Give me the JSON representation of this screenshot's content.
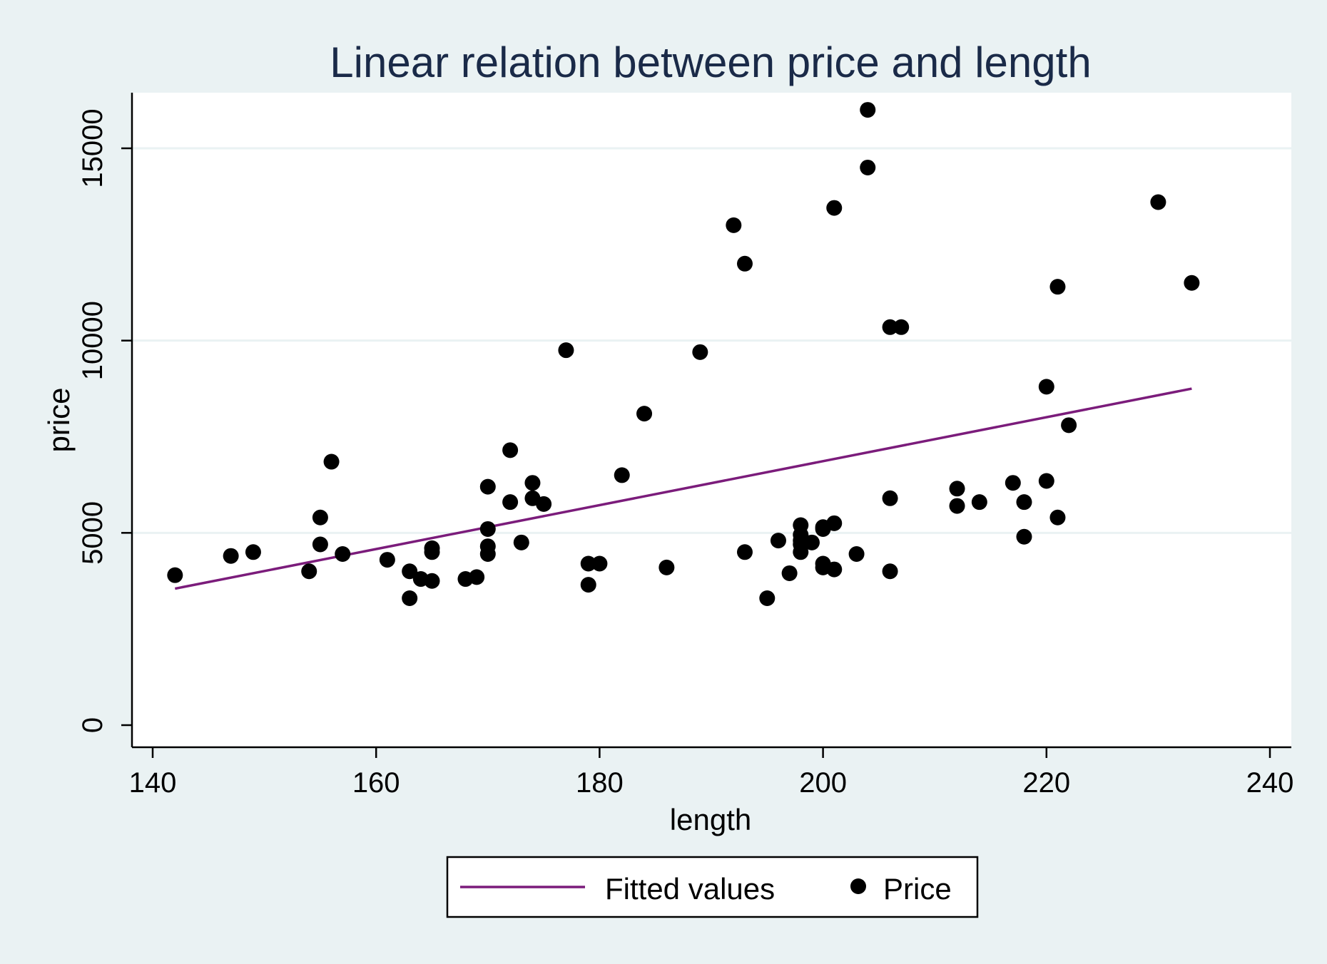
{
  "chart_data": {
    "type": "scatter",
    "title": "Linear relation between price and length",
    "xlabel": "length",
    "ylabel": "price",
    "xlim": [
      140,
      240
    ],
    "ylim": [
      0,
      15000
    ],
    "xticks": [
      140,
      160,
      180,
      200,
      220,
      240
    ],
    "yticks": [
      0,
      5000,
      10000,
      15000
    ],
    "grid": "horizontal",
    "legend": {
      "position": "bottom",
      "entries": [
        "Fitted values",
        "Price"
      ]
    },
    "colors": {
      "fitted": "#7b1c7b",
      "points": "#000000",
      "plot_bg": "#ffffff",
      "page_bg": "#eaf2f3",
      "grid": "#eaf2f3"
    },
    "series": [
      {
        "name": "Fitted values",
        "kind": "line",
        "points": [
          [
            142,
            3550
          ],
          [
            233,
            8750
          ]
        ]
      },
      {
        "name": "Price",
        "kind": "scatter",
        "points": [
          [
            142,
            3900
          ],
          [
            147,
            4400
          ],
          [
            149,
            4500
          ],
          [
            154,
            4000
          ],
          [
            155,
            4700
          ],
          [
            155,
            5400
          ],
          [
            156,
            6850
          ],
          [
            157,
            4450
          ],
          [
            161,
            4300
          ],
          [
            163,
            4000
          ],
          [
            163,
            3300
          ],
          [
            164,
            3800
          ],
          [
            165,
            4600
          ],
          [
            165,
            4500
          ],
          [
            165,
            3750
          ],
          [
            168,
            3800
          ],
          [
            169,
            3850
          ],
          [
            170,
            6200
          ],
          [
            170,
            5100
          ],
          [
            170,
            4650
          ],
          [
            170,
            4450
          ],
          [
            172,
            7150
          ],
          [
            172,
            5800
          ],
          [
            173,
            4750
          ],
          [
            174,
            6300
          ],
          [
            174,
            5900
          ],
          [
            175,
            5750
          ],
          [
            177,
            9750
          ],
          [
            179,
            4200
          ],
          [
            179,
            3650
          ],
          [
            180,
            4200
          ],
          [
            182,
            6500
          ],
          [
            184,
            8100
          ],
          [
            186,
            4100
          ],
          [
            189,
            9700
          ],
          [
            192,
            13000
          ],
          [
            193,
            12000
          ],
          [
            193,
            4500
          ],
          [
            195,
            3300
          ],
          [
            196,
            4800
          ],
          [
            197,
            3950
          ],
          [
            198,
            5200
          ],
          [
            198,
            4950
          ],
          [
            198,
            4800
          ],
          [
            198,
            4700
          ],
          [
            198,
            4500
          ],
          [
            199,
            4750
          ],
          [
            200,
            5150
          ],
          [
            200,
            5100
          ],
          [
            200,
            4200
          ],
          [
            200,
            4100
          ],
          [
            201,
            13450
          ],
          [
            201,
            5250
          ],
          [
            201,
            4050
          ],
          [
            203,
            4450
          ],
          [
            204,
            16000
          ],
          [
            204,
            14500
          ],
          [
            206,
            10350
          ],
          [
            206,
            5900
          ],
          [
            206,
            4000
          ],
          [
            207,
            10350
          ],
          [
            212,
            6150
          ],
          [
            212,
            5700
          ],
          [
            214,
            5800
          ],
          [
            217,
            6300
          ],
          [
            218,
            5800
          ],
          [
            218,
            4900
          ],
          [
            220,
            8800
          ],
          [
            220,
            6350
          ],
          [
            221,
            11400
          ],
          [
            221,
            5400
          ],
          [
            222,
            7800
          ],
          [
            230,
            13600
          ],
          [
            233,
            11500
          ]
        ]
      }
    ]
  }
}
